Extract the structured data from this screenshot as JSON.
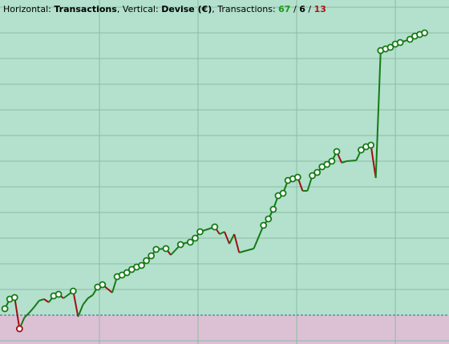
{
  "header": {
    "x_caption": "Horizontal:",
    "x_name": "Transactions",
    "separator": ",",
    "y_caption": "Vertical:",
    "y_name": "Devise (€)",
    "count_caption": "Transactions:",
    "winning": 67,
    "count_separator": "/",
    "neutral": 6,
    "losing": 13
  },
  "chart_data": {
    "type": "line",
    "x": [
      0,
      1,
      2,
      3,
      4,
      5,
      6,
      7,
      8,
      9,
      10,
      11,
      12,
      14,
      15,
      16,
      17,
      18,
      19,
      20,
      21,
      22,
      23,
      24,
      25,
      26,
      27,
      28,
      29,
      30,
      31,
      33,
      34,
      36,
      37,
      38,
      39,
      40,
      43,
      44,
      45,
      46,
      47,
      48,
      51,
      53,
      54,
      55,
      56,
      57,
      58,
      59,
      60,
      61,
      62,
      63,
      64,
      65,
      66,
      67,
      68,
      69,
      70,
      72,
      73,
      74,
      75,
      76,
      77,
      78,
      79,
      80,
      81,
      83,
      84,
      85,
      86
    ],
    "series": [
      {
        "values": [
          8,
          20,
          22,
          -17,
          -3,
          3,
          10,
          18,
          20,
          16,
          24,
          26,
          21,
          30,
          -2,
          13,
          21,
          25,
          35,
          38,
          33,
          28,
          48,
          50,
          53,
          57,
          60,
          62,
          68,
          74,
          82,
          83,
          75,
          88,
          90,
          91,
          96,
          104,
          110,
          101,
          104,
          89,
          101,
          78,
          83,
          112,
          120,
          132,
          149,
          152,
          168,
          170,
          172,
          155,
          155,
          174,
          178,
          185,
          188,
          192,
          204,
          190,
          192,
          193,
          206,
          210,
          212,
          171,
          330,
          332,
          334,
          338,
          340,
          344,
          348,
          350,
          352
        ]
      }
    ],
    "marked": [
      0,
      1,
      2,
      3,
      10,
      11,
      13,
      18,
      19,
      22,
      23,
      24,
      25,
      26,
      27,
      28,
      29,
      30,
      31,
      33,
      35,
      36,
      37,
      38,
      45,
      46,
      47,
      48,
      49,
      50,
      51,
      52,
      55,
      56,
      57,
      58,
      59,
      60,
      64,
      65,
      66,
      68,
      69,
      70,
      71,
      72,
      73,
      74,
      75,
      76
    ],
    "up_color": "#157a15",
    "down_color": "#9e1010",
    "xlim": [
      -1,
      91
    ],
    "ylim": [
      -36,
      393
    ],
    "xgrid": [
      19.37,
      39.58,
      59.79,
      80.0
    ],
    "ygrid": [
      -32,
      32,
      64,
      96,
      128,
      160,
      192,
      224,
      256,
      288,
      320,
      352,
      384
    ],
    "baseline": 0
  }
}
